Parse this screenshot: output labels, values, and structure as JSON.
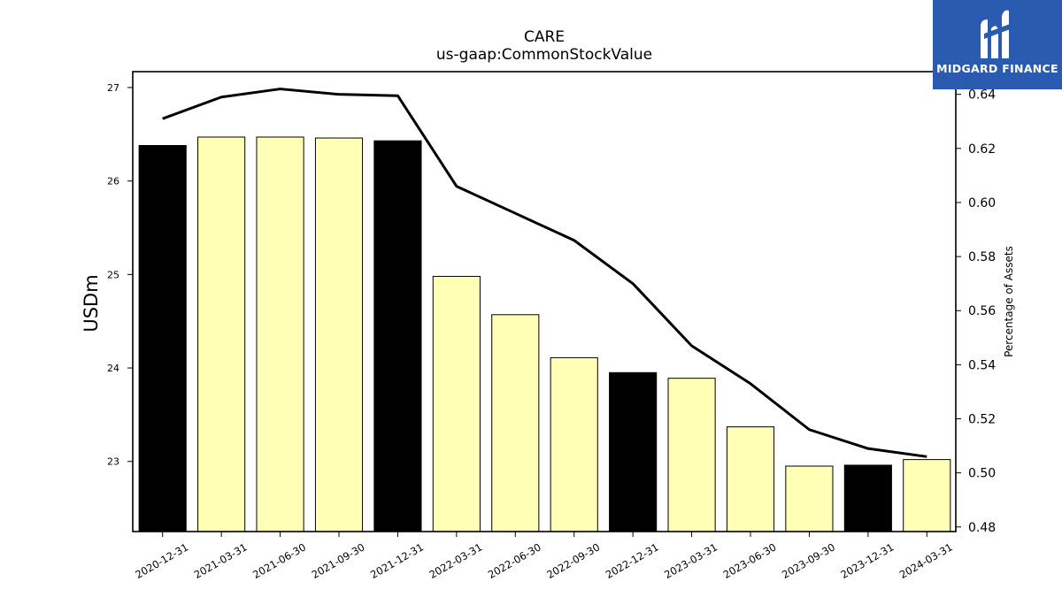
{
  "title": "CARE",
  "subtitle": "us-gaap:CommonStockValue",
  "logo": {
    "text": "MIDGARD FINANCE",
    "color": "#2b5bb0"
  },
  "chart_data": {
    "type": "bar",
    "categories": [
      "2020-12-31",
      "2021-03-31",
      "2021-06-30",
      "2021-09-30",
      "2021-12-31",
      "2022-03-31",
      "2022-06-30",
      "2022-09-30",
      "2022-12-31",
      "2023-03-31",
      "2023-06-30",
      "2023-09-30",
      "2023-12-31",
      "2024-03-31"
    ],
    "series": [
      {
        "name": "",
        "axis": "left",
        "type": "bar",
        "values": [
          26.38,
          26.47,
          26.47,
          26.46,
          26.43,
          24.98,
          24.57,
          24.11,
          23.95,
          23.89,
          23.37,
          22.95,
          22.96,
          23.02
        ],
        "colors": [
          "#000000",
          "#ffffb5",
          "#ffffb5",
          "#ffffb5",
          "#000000",
          "#ffffb5",
          "#ffffb5",
          "#ffffb5",
          "#000000",
          "#ffffb5",
          "#ffffb5",
          "#ffffb5",
          "#000000",
          "#ffffb5"
        ]
      },
      {
        "name": "",
        "axis": "right",
        "type": "line",
        "color": "#000000",
        "values": [
          0.631,
          0.639,
          0.642,
          0.64,
          0.6395,
          0.606,
          0.596,
          0.586,
          0.57,
          0.547,
          0.533,
          0.516,
          0.509,
          0.506
        ]
      }
    ],
    "ylabel": "USDm",
    "y2label": "Percentage of Assets",
    "ylim": [
      22.25,
      27.17
    ],
    "y2lim": [
      0.4783,
      0.6484
    ],
    "yticks": [
      23,
      24,
      25,
      26,
      27
    ],
    "y2ticks": [
      "0.48",
      "0.50",
      "0.52",
      "0.54",
      "0.56",
      "0.58",
      "0.60",
      "0.62",
      "0.64"
    ],
    "grid": false
  }
}
